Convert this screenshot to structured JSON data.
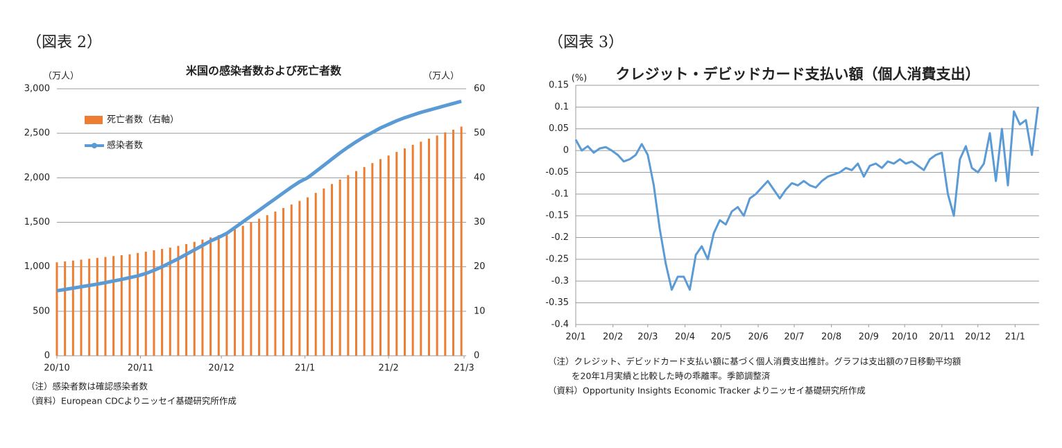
{
  "chart_data": [
    {
      "type": "combo",
      "figure_label": "（図表 2）",
      "title": "米国の感染者数および死亡者数",
      "y_label": "（万人）",
      "y2_label": "（万人）",
      "x": [
        0,
        3,
        6,
        9,
        12,
        15,
        18,
        21,
        24,
        27,
        30,
        33,
        36,
        39,
        42,
        45,
        48,
        51,
        54,
        57,
        60,
        63,
        66,
        69,
        72,
        75,
        78,
        81,
        84,
        87,
        90,
        93,
        96,
        99,
        102,
        105,
        108,
        111,
        114,
        117,
        120,
        123,
        126,
        129,
        132,
        135,
        138,
        141,
        144,
        147,
        150
      ],
      "xlim": [
        0,
        151
      ],
      "xticks": [
        {
          "value": 0,
          "label": "20/10"
        },
        {
          "value": 31,
          "label": "20/11"
        },
        {
          "value": 61,
          "label": "20/12"
        },
        {
          "value": 92,
          "label": "21/1"
        },
        {
          "value": 123,
          "label": "21/2"
        },
        {
          "value": 151,
          "label": "21/3"
        }
      ],
      "ylim": [
        0,
        3000
      ],
      "yticks": [
        0,
        500,
        {
          "value": 1000,
          "label": "1,000"
        },
        {
          "value": 1500,
          "label": "1,500"
        },
        {
          "value": 2000,
          "label": "2,000"
        },
        {
          "value": 2500,
          "label": "2,500"
        },
        {
          "value": 3000,
          "label": "3,000"
        }
      ],
      "y2lim": [
        0,
        60
      ],
      "y2ticks": [
        0,
        10,
        20,
        30,
        40,
        50,
        60
      ],
      "grid": true,
      "legend": "upper-left",
      "series": [
        {
          "name": "死亡者数（右軸）",
          "type": "bar",
          "axis": "y2",
          "color": "#ED7D31",
          "values": [
            21,
            21.2,
            21.4,
            21.6,
            21.8,
            22,
            22.2,
            22.4,
            22.6,
            22.8,
            23.1,
            23.4,
            23.7,
            24,
            24.3,
            24.7,
            25.1,
            25.6,
            26.1,
            26.6,
            27.1,
            27.6,
            28.4,
            29.2,
            30,
            30.8,
            31.6,
            32.4,
            33.2,
            34,
            34.8,
            35.6,
            36.6,
            37.6,
            38.6,
            39.6,
            40.6,
            41.5,
            42.4,
            43.3,
            44.2,
            45,
            45.8,
            46.6,
            47.4,
            48.1,
            48.8,
            49.5,
            50.2,
            50.8,
            51.5
          ]
        },
        {
          "name": "感染者数",
          "type": "line",
          "color": "#5B9BD5",
          "values": [
            730,
            745,
            760,
            775,
            790,
            805,
            822,
            840,
            858,
            878,
            898,
            925,
            960,
            1000,
            1045,
            1090,
            1140,
            1190,
            1240,
            1290,
            1330,
            1375,
            1440,
            1505,
            1570,
            1635,
            1700,
            1765,
            1830,
            1895,
            1955,
            2000,
            2070,
            2140,
            2210,
            2280,
            2345,
            2405,
            2460,
            2510,
            2560,
            2600,
            2640,
            2675,
            2705,
            2735,
            2760,
            2785,
            2810,
            2835,
            2860
          ]
        }
      ],
      "notes": [
        "（注）感染者数は確認感染者数",
        "（資料）European CDCよりニッセイ基礎研究所作成"
      ]
    },
    {
      "type": "line",
      "figure_label": "（図表 3）",
      "title": "クレジット・デビッドカード支払い額（個人消費支出）",
      "y_label": "(%)",
      "x": [
        0,
        5,
        10,
        15,
        20,
        25,
        30,
        35,
        40,
        45,
        50,
        55,
        60,
        65,
        70,
        75,
        80,
        85,
        90,
        95,
        100,
        105,
        110,
        115,
        120,
        125,
        130,
        135,
        140,
        145,
        150,
        155,
        160,
        165,
        170,
        175,
        180,
        185,
        190,
        195,
        200,
        205,
        210,
        215,
        220,
        225,
        230,
        235,
        240,
        245,
        250,
        255,
        260,
        265,
        270,
        275,
        280,
        285,
        290,
        295,
        300,
        305,
        310,
        315,
        320,
        325,
        330,
        335,
        340,
        345,
        350,
        355,
        360,
        365,
        370,
        375,
        380,
        385
      ],
      "xlim": [
        0,
        386
      ],
      "xticks": [
        {
          "value": 0,
          "label": "20/1"
        },
        {
          "value": 31,
          "label": "20/2"
        },
        {
          "value": 60,
          "label": "20/3"
        },
        {
          "value": 91,
          "label": "20/4"
        },
        {
          "value": 121,
          "label": "20/5"
        },
        {
          "value": 152,
          "label": "20/6"
        },
        {
          "value": 182,
          "label": "20/7"
        },
        {
          "value": 213,
          "label": "20/8"
        },
        {
          "value": 244,
          "label": "20/9"
        },
        {
          "value": 274,
          "label": "20/10"
        },
        {
          "value": 305,
          "label": "20/11"
        },
        {
          "value": 335,
          "label": "20/12"
        },
        {
          "value": 366,
          "label": "21/1"
        }
      ],
      "ylim": [
        -0.4,
        0.15
      ],
      "yticks": [
        0.15,
        0.1,
        0.05,
        0,
        -0.05,
        -0.1,
        -0.15,
        -0.2,
        -0.25,
        -0.3,
        -0.35,
        -0.4
      ],
      "grid": true,
      "color": "#5B9BD5",
      "values": [
        0.025,
        0.0,
        0.01,
        -0.005,
        0.005,
        0.008,
        0.0,
        -0.01,
        -0.025,
        -0.02,
        -0.01,
        0.015,
        -0.01,
        -0.08,
        -0.18,
        -0.26,
        -0.32,
        -0.29,
        -0.29,
        -0.32,
        -0.24,
        -0.22,
        -0.25,
        -0.19,
        -0.16,
        -0.17,
        -0.14,
        -0.13,
        -0.15,
        -0.11,
        -0.1,
        -0.085,
        -0.07,
        -0.09,
        -0.11,
        -0.09,
        -0.075,
        -0.08,
        -0.07,
        -0.08,
        -0.085,
        -0.07,
        -0.06,
        -0.055,
        -0.05,
        -0.04,
        -0.045,
        -0.03,
        -0.06,
        -0.035,
        -0.03,
        -0.04,
        -0.025,
        -0.03,
        -0.02,
        -0.03,
        -0.025,
        -0.035,
        -0.045,
        -0.02,
        -0.01,
        -0.005,
        -0.1,
        -0.15,
        -0.02,
        0.01,
        -0.04,
        -0.05,
        -0.03,
        0.04,
        -0.07,
        0.05,
        -0.08,
        0.09,
        0.06,
        0.07,
        -0.01,
        0.1
      ],
      "notes": [
        "（注）クレジット、デビッドカード支払い額に基づく個人消費支出推計。グラフは支出額の7日移動平均額",
        "を20年1月実績と比較した時の乖離率。季節調整済",
        "（資料）Opportunity Insights Economic Tracker よりニッセイ基礎研究所作成"
      ]
    }
  ]
}
